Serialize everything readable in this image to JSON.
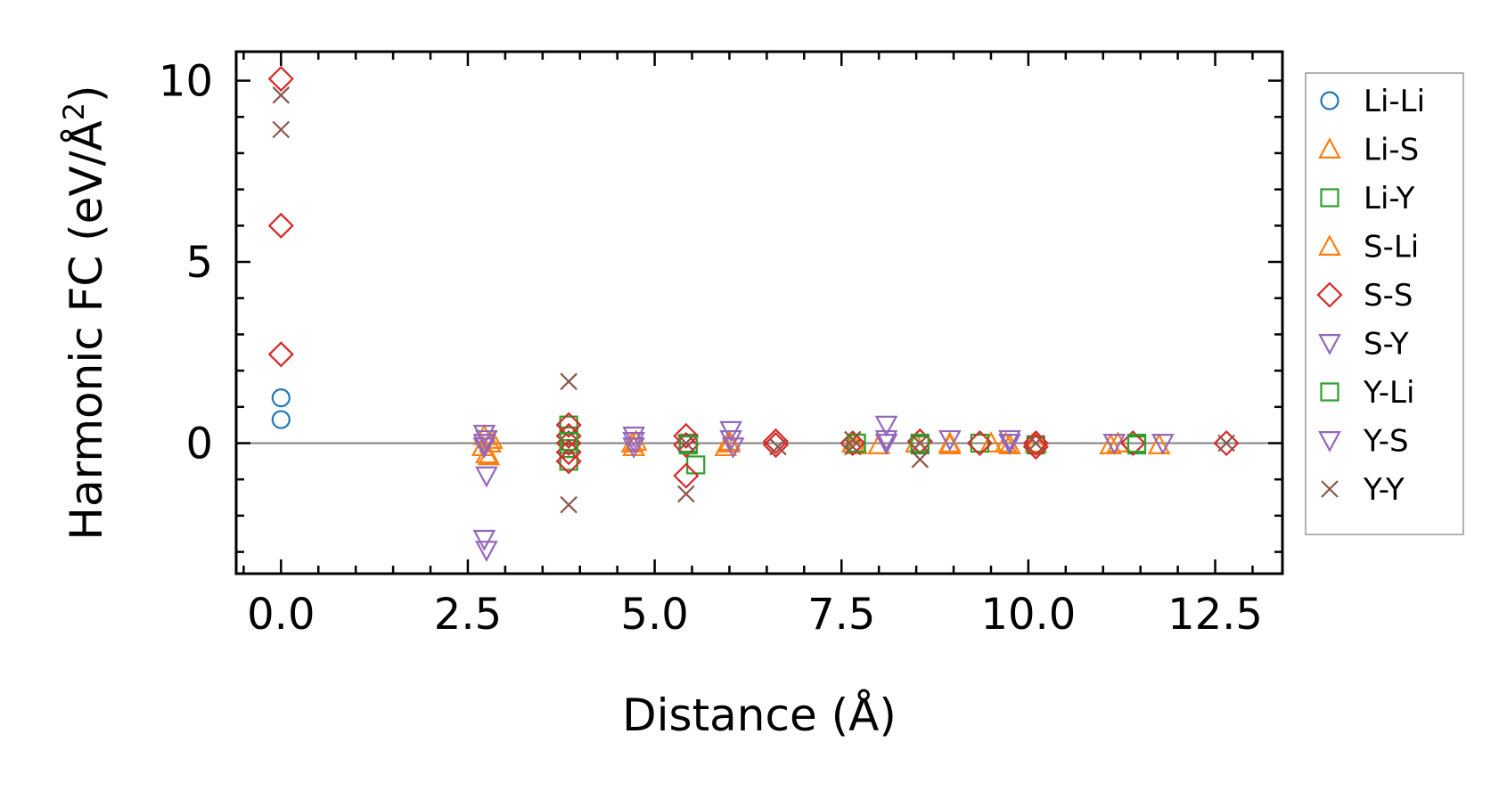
{
  "chart_data": {
    "type": "scatter",
    "xlabel": "Distance (Å)",
    "ylabel": "Harmonic FC (eV/Å²)",
    "ylabel_main": "Harmonic FC (eV/Å",
    "ylabel_sup": "2",
    "ylabel_close": ")",
    "xlim": [
      -0.6,
      13.4
    ],
    "ylim": [
      -3.6,
      10.8
    ],
    "xticks": [
      0.0,
      2.5,
      5.0,
      7.5,
      10.0,
      12.5
    ],
    "xtick_labels": [
      "0.0",
      "2.5",
      "5.0",
      "7.5",
      "10.0",
      "12.5"
    ],
    "yticks": [
      0,
      5,
      10
    ],
    "ytick_labels": [
      "0",
      "5",
      "10"
    ],
    "minor_xtick_step": 0.5,
    "minor_ytick_step": 1,
    "zero_line": true,
    "grid": false,
    "legend_position": "outside-right",
    "series": [
      {
        "name": "Li-Li",
        "marker": "circle",
        "color": "#1f77b4",
        "points": [
          [
            0,
            1.25
          ],
          [
            0,
            0.65
          ]
        ]
      },
      {
        "name": "Li-S",
        "marker": "triangle-up",
        "color": "#ff7f0e",
        "points": [
          [
            2.72,
            0.2
          ],
          [
            2.75,
            -0.3
          ],
          [
            2.78,
            -0.35
          ],
          [
            2.82,
            0.1
          ],
          [
            4.72,
            -0.1
          ],
          [
            4.75,
            0.05
          ],
          [
            5.95,
            -0.1
          ],
          [
            6.0,
            0.0
          ],
          [
            7.7,
            -0.05
          ],
          [
            8.0,
            -0.05
          ],
          [
            8.5,
            0.0
          ],
          [
            8.95,
            -0.05
          ],
          [
            9.5,
            0.0
          ],
          [
            9.75,
            -0.05
          ],
          [
            10.1,
            0.0
          ],
          [
            11.1,
            -0.05
          ],
          [
            11.75,
            -0.05
          ]
        ]
      },
      {
        "name": "Li-Y",
        "marker": "square",
        "color": "#2ca02c",
        "points": [
          [
            3.85,
            0.5
          ],
          [
            3.85,
            0.2
          ],
          [
            3.85,
            -0.15
          ],
          [
            3.85,
            -0.5
          ],
          [
            5.45,
            0.0
          ],
          [
            5.55,
            -0.6
          ],
          [
            7.7,
            0.0
          ],
          [
            8.55,
            -0.05
          ],
          [
            9.35,
            0.0
          ],
          [
            10.1,
            -0.05
          ],
          [
            11.45,
            -0.05
          ]
        ]
      },
      {
        "name": "S-Li",
        "marker": "triangle-up",
        "color": "#ff7f0e",
        "points": [
          [
            2.7,
            -0.1
          ],
          [
            2.8,
            0.0
          ],
          [
            4.7,
            0.0
          ],
          [
            6.0,
            0.05
          ],
          [
            7.65,
            0.0
          ],
          [
            8.95,
            0.0
          ],
          [
            9.7,
            0.0
          ],
          [
            11.2,
            0.0
          ]
        ]
      },
      {
        "name": "S-S",
        "marker": "diamond",
        "color": "#d62728",
        "points": [
          [
            0,
            10.05
          ],
          [
            0,
            6.0
          ],
          [
            0,
            2.45
          ],
          [
            3.85,
            0.5
          ],
          [
            3.85,
            0.2
          ],
          [
            3.85,
            0.0
          ],
          [
            3.85,
            -0.25
          ],
          [
            3.85,
            -0.5
          ],
          [
            5.42,
            0.2
          ],
          [
            5.42,
            -0.05
          ],
          [
            5.42,
            -0.9
          ],
          [
            6.62,
            -0.05
          ],
          [
            6.62,
            0.05
          ],
          [
            7.65,
            0.0
          ],
          [
            8.55,
            0.05
          ],
          [
            9.35,
            0.0
          ],
          [
            10.1,
            0.0
          ],
          [
            10.1,
            -0.1
          ],
          [
            11.4,
            0.0
          ],
          [
            12.65,
            0.0
          ]
        ]
      },
      {
        "name": "S-Y",
        "marker": "triangle-down",
        "color": "#9467bd",
        "points": [
          [
            2.72,
            0.25
          ],
          [
            2.72,
            0.0
          ],
          [
            2.72,
            -0.1
          ],
          [
            2.75,
            -0.9
          ],
          [
            2.72,
            -2.65
          ],
          [
            2.75,
            -2.95
          ],
          [
            4.72,
            0.2
          ],
          [
            4.72,
            -0.1
          ],
          [
            6.02,
            0.35
          ],
          [
            6.05,
            -0.1
          ],
          [
            8.1,
            0.5
          ],
          [
            8.1,
            0.1
          ],
          [
            8.95,
            0.1
          ],
          [
            9.75,
            0.1
          ],
          [
            11.15,
            0.0
          ],
          [
            11.8,
            0.0
          ]
        ]
      },
      {
        "name": "Y-Li",
        "marker": "square",
        "color": "#2ca02c",
        "points": [
          [
            3.85,
            0.05
          ],
          [
            5.45,
            -0.05
          ],
          [
            7.7,
            0.0
          ],
          [
            8.55,
            0.0
          ],
          [
            11.45,
            0.0
          ]
        ]
      },
      {
        "name": "Y-S",
        "marker": "triangle-down",
        "color": "#9467bd",
        "points": [
          [
            2.75,
            0.1
          ],
          [
            4.72,
            0.05
          ],
          [
            6.02,
            0.1
          ],
          [
            8.1,
            0.0
          ],
          [
            9.75,
            0.0
          ]
        ]
      },
      {
        "name": "Y-Y",
        "marker": "x",
        "color": "#8c564b",
        "points": [
          [
            0,
            9.6
          ],
          [
            0,
            8.65
          ],
          [
            3.85,
            1.7
          ],
          [
            3.85,
            -1.7
          ],
          [
            5.42,
            -1.4
          ],
          [
            5.42,
            0.0
          ],
          [
            6.65,
            -0.1
          ],
          [
            7.65,
            0.1
          ],
          [
            7.65,
            -0.1
          ],
          [
            8.55,
            -0.45
          ],
          [
            8.55,
            0.0
          ],
          [
            10.1,
            0.0
          ],
          [
            12.65,
            0.0
          ]
        ]
      }
    ]
  }
}
